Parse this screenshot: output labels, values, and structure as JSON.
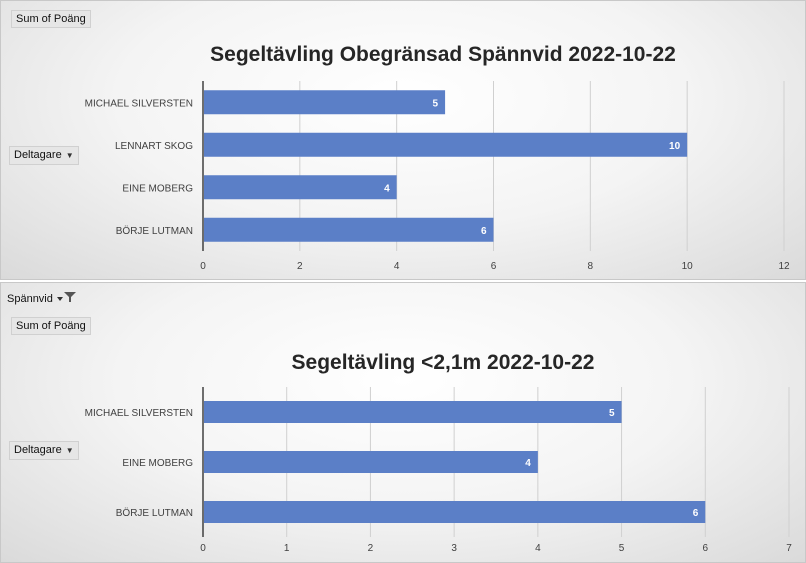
{
  "panel1": {
    "value_button": "Sum of Poäng",
    "row_button": "Deltagare"
  },
  "panel2": {
    "filter_button": "Spännvid",
    "value_button": "Sum of Poäng",
    "row_button": "Deltagare"
  },
  "chart_data": [
    {
      "type": "bar",
      "orientation": "horizontal",
      "title": "Segeltävling Obegränsad Spännvid 2022-10-22",
      "categories": [
        "MICHAEL SILVERSTEN",
        "LENNART SKOG",
        "EINE MOBERG",
        "BÖRJE LUTMAN"
      ],
      "values": [
        5,
        10,
        4,
        6
      ],
      "xlim": [
        0,
        12
      ],
      "ticks": [
        "0",
        "2",
        "4",
        "6",
        "8",
        "10",
        "12"
      ],
      "grid": true,
      "bar_color": "#5b7fc7",
      "data_labels": true
    },
    {
      "type": "bar",
      "orientation": "horizontal",
      "title": "Segeltävling <2,1m 2022-10-22",
      "categories": [
        "MICHAEL SILVERSTEN",
        "EINE MOBERG",
        "BÖRJE LUTMAN"
      ],
      "values": [
        5,
        4,
        6
      ],
      "xlim": [
        0,
        7
      ],
      "ticks": [
        "0",
        "1",
        "2",
        "3",
        "4",
        "5",
        "6",
        "7"
      ],
      "grid": true,
      "bar_color": "#5b7fc7",
      "data_labels": true
    }
  ]
}
